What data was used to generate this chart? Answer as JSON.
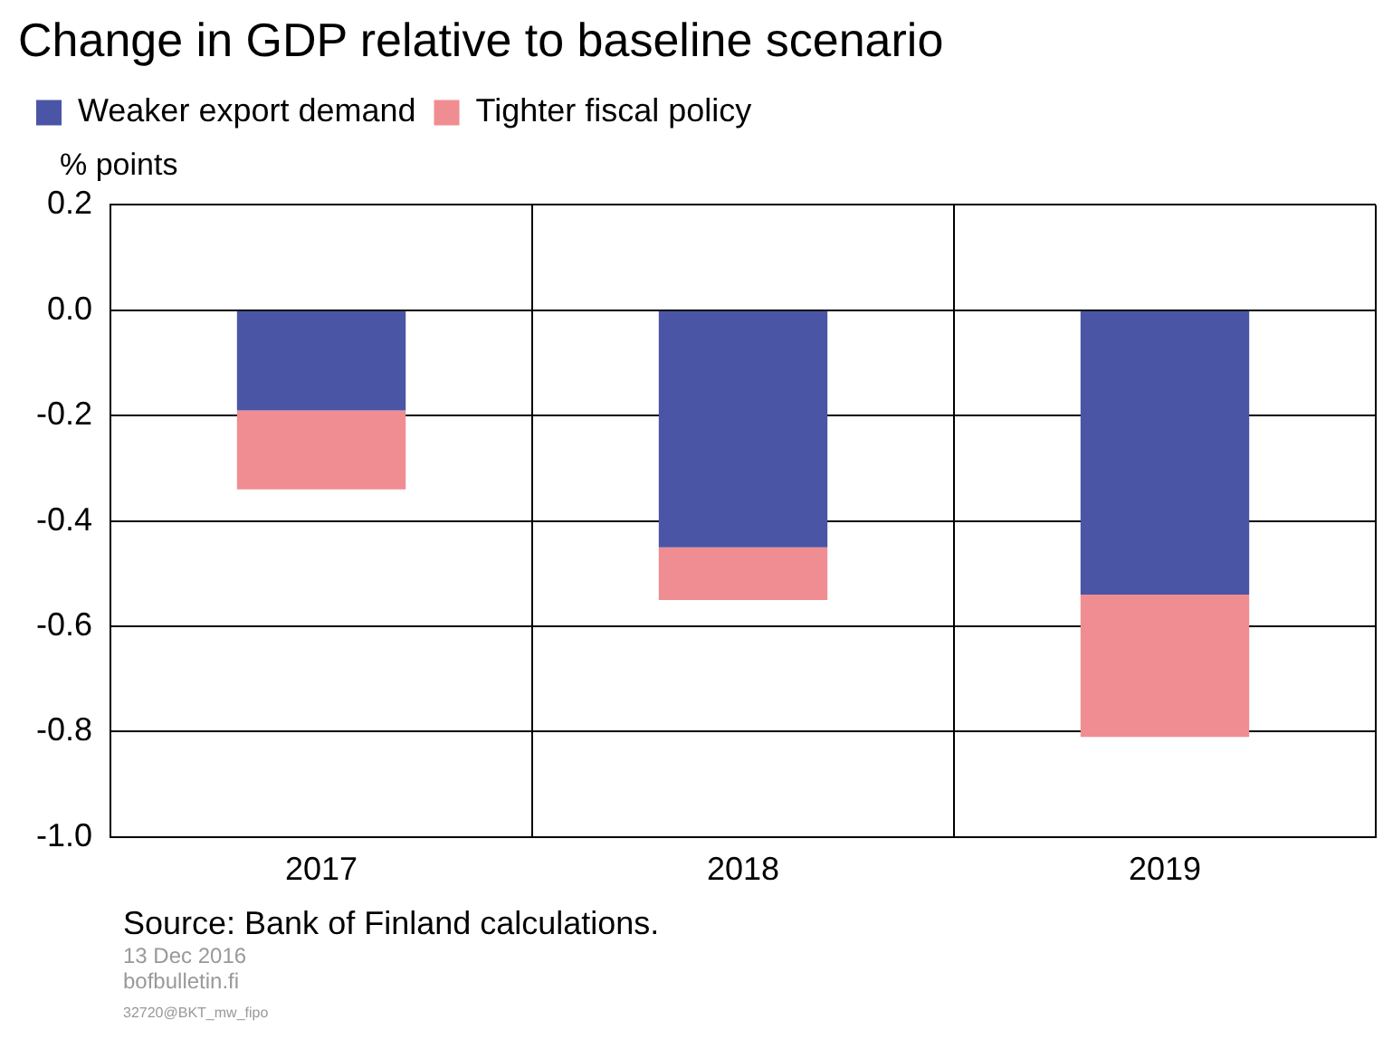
{
  "chart_data": {
    "type": "bar",
    "title": "Change in GDP relative to baseline scenario",
    "ylabel": "% points",
    "categories": [
      "2017",
      "2018",
      "2019"
    ],
    "stacked": true,
    "series": [
      {
        "name": "Weaker export demand",
        "color": "#4b55a5",
        "values": [
          -0.19,
          -0.45,
          -0.54
        ]
      },
      {
        "name": "Tighter fiscal policy",
        "color": "#f08d92",
        "values": [
          -0.15,
          -0.1,
          -0.27
        ]
      }
    ],
    "ylim": [
      -1.0,
      0.2
    ],
    "yticks": [
      {
        "value": 0.2,
        "label": "0.2"
      },
      {
        "value": 0,
        "label": "0.0"
      },
      {
        "value": -0.2,
        "label": "-0.2"
      },
      {
        "value": -0.4,
        "label": "-0.4"
      },
      {
        "value": -0.6,
        "label": "-0.6"
      },
      {
        "value": -0.8,
        "label": "-0.8"
      },
      {
        "value": -1.0,
        "label": "-1.0"
      }
    ],
    "grid": true,
    "legend": "top left",
    "annotations": [
      "Source: Bank of Finland calculations.",
      "13 Dec 2016",
      "bofbulletin.fi",
      "32720@BKT_mw_fipo"
    ]
  }
}
